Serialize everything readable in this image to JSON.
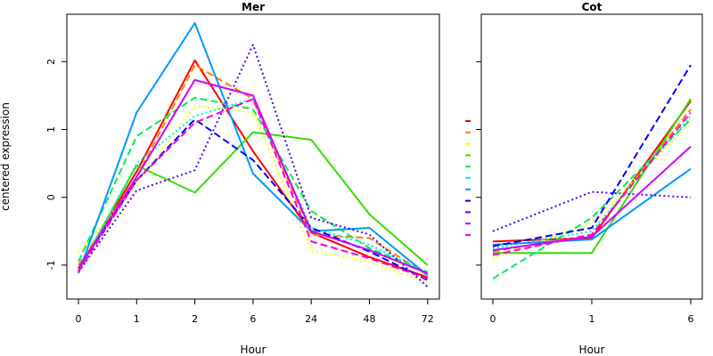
{
  "chart_data": [
    {
      "type": "line",
      "title": "Mer",
      "xlabel": "Hour",
      "ylabel": "centered expression",
      "categories": [
        "0",
        "1",
        "2",
        "6",
        "24",
        "48",
        "72"
      ],
      "ylim": [
        -1.5,
        2.7
      ],
      "yticks": [
        -1,
        0,
        1,
        2
      ],
      "grid": false,
      "series": [
        {
          "color": "#ff0000",
          "dash": "solid",
          "values": [
            -1.05,
            0.38,
            2.02,
            0.68,
            -0.52,
            -0.88,
            -1.18
          ]
        },
        {
          "color": "#ff7f00",
          "dash": "dashed",
          "values": [
            -1.0,
            0.3,
            1.95,
            1.45,
            -0.55,
            -0.6,
            -1.15
          ]
        },
        {
          "color": "#ffff00",
          "dash": "dotted",
          "values": [
            -0.82,
            0.2,
            1.35,
            1.25,
            -0.78,
            -0.95,
            -1.25
          ]
        },
        {
          "color": "#33dd00",
          "dash": "solid",
          "values": [
            -1.08,
            0.47,
            0.07,
            0.96,
            0.85,
            -0.25,
            -1.0
          ]
        },
        {
          "color": "#00ee55",
          "dash": "dashed",
          "values": [
            -0.95,
            0.9,
            1.47,
            1.3,
            -0.2,
            -0.75,
            -1.1
          ]
        },
        {
          "color": "#00eeee",
          "dash": "dotted",
          "values": [
            -1.1,
            0.5,
            1.2,
            1.45,
            -0.45,
            -0.7,
            -1.12
          ]
        },
        {
          "color": "#0099ff",
          "dash": "solid",
          "values": [
            -1.12,
            1.25,
            2.57,
            0.35,
            -0.5,
            -0.45,
            -1.15
          ]
        },
        {
          "color": "#0000ff",
          "dash": "dashed",
          "values": [
            -1.05,
            0.25,
            1.15,
            0.55,
            -0.45,
            -0.8,
            -1.22
          ]
        },
        {
          "color": "#5500ee",
          "dash": "dotted",
          "values": [
            -1.1,
            0.1,
            0.4,
            2.25,
            -0.3,
            -0.55,
            -1.32
          ]
        },
        {
          "color": "#cc00ff",
          "dash": "solid",
          "values": [
            -1.05,
            0.3,
            1.73,
            1.5,
            -0.5,
            -0.78,
            -1.12
          ]
        },
        {
          "color": "#ff00cc",
          "dash": "dashed",
          "values": [
            -1.1,
            0.25,
            1.1,
            1.45,
            -0.65,
            -0.9,
            -1.2
          ]
        }
      ]
    },
    {
      "type": "line",
      "title": "Cot",
      "xlabel": "Hour",
      "ylabel": "",
      "categories": [
        "0",
        "1",
        "6"
      ],
      "ylim": [
        -1.5,
        2.7
      ],
      "yticks": [
        -1,
        0,
        1,
        2
      ],
      "grid": false,
      "series": [
        {
          "color": "#ff0000",
          "dash": "solid",
          "values": [
            -0.65,
            -0.6,
            1.42
          ]
        },
        {
          "color": "#ff7f00",
          "dash": "dashed",
          "values": [
            -0.8,
            -0.55,
            1.3
          ]
        },
        {
          "color": "#ffff00",
          "dash": "dotted",
          "values": [
            -0.9,
            -0.38,
            1.1
          ]
        },
        {
          "color": "#33dd00",
          "dash": "solid",
          "values": [
            -0.82,
            -0.82,
            1.45
          ]
        },
        {
          "color": "#00ee55",
          "dash": "dashed",
          "values": [
            -1.2,
            -0.3,
            1.15
          ]
        },
        {
          "color": "#00eeee",
          "dash": "dotted",
          "values": [
            -0.75,
            -0.5,
            1.2
          ]
        },
        {
          "color": "#0099ff",
          "dash": "solid",
          "values": [
            -0.7,
            -0.62,
            0.42
          ]
        },
        {
          "color": "#0000ff",
          "dash": "dashed",
          "values": [
            -0.72,
            -0.45,
            1.95
          ]
        },
        {
          "color": "#5500ee",
          "dash": "dotted",
          "values": [
            -0.5,
            0.08,
            0.0
          ]
        },
        {
          "color": "#cc00ff",
          "dash": "solid",
          "values": [
            -0.78,
            -0.58,
            0.75
          ]
        },
        {
          "color": "#ff00cc",
          "dash": "dashed",
          "values": [
            -0.85,
            -0.55,
            1.25
          ]
        }
      ]
    }
  ]
}
